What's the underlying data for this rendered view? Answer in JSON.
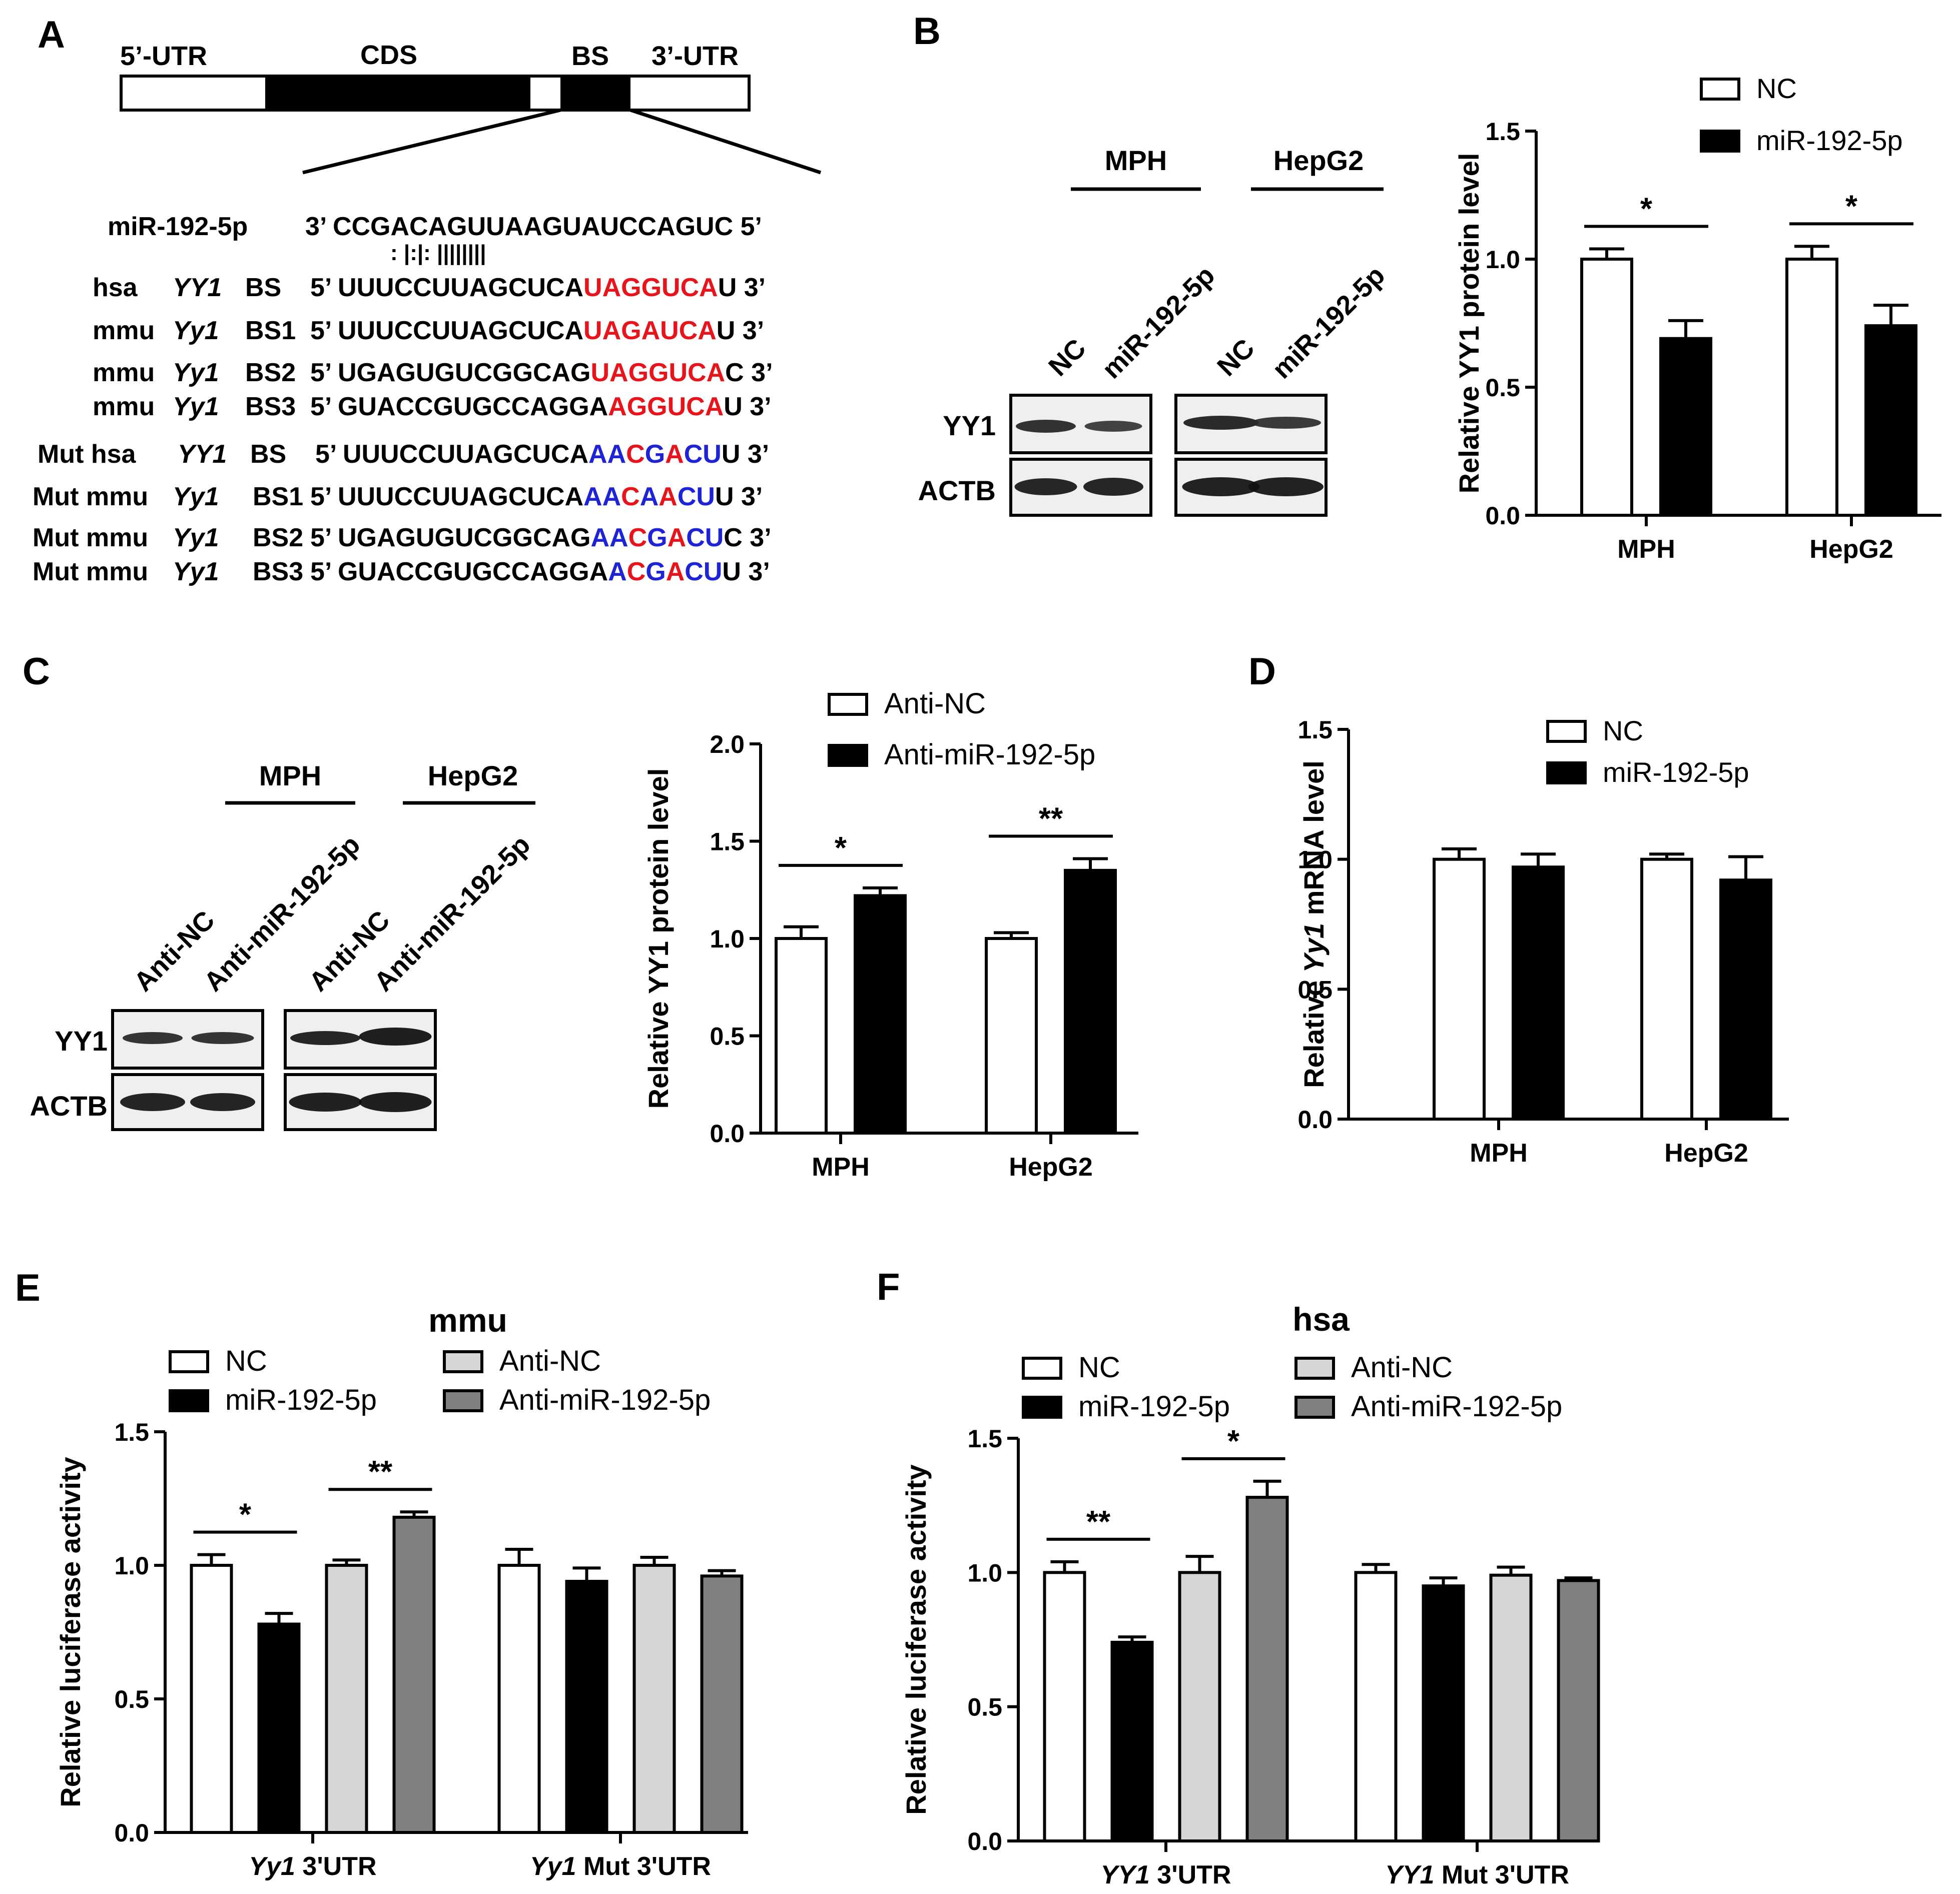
{
  "panels": {
    "A": {
      "label": "A",
      "gene_regions": [
        "5’-UTR",
        "CDS",
        "BS",
        "3’-UTR"
      ],
      "mirna_row": {
        "name": "miR-192-5p",
        "seq": "3’ CCGACAGUUAAGUAUCCAGUC 5’",
        "pairing": ":   |:|:   ||||||||"
      },
      "rows": [
        {
          "prefix": "hsa",
          "gene": "YY1",
          "site": "BS",
          "seq_pre": "5’ UUUCCUUAGCUCA",
          "seq_colored": [
            {
              "t": "UAGGUCA",
              "c": "#e8141c"
            }
          ],
          "seq_post": "U 3’"
        },
        {
          "prefix": "mmu",
          "gene": "Yy1",
          "site": "BS1",
          "seq_pre": "5’ UUUCCUUAGCUCA",
          "seq_colored": [
            {
              "t": "UAGAUCA",
              "c": "#e8141c"
            }
          ],
          "seq_post": "U 3’"
        },
        {
          "prefix": "mmu",
          "gene": "Yy1",
          "site": "BS2",
          "seq_pre": "5’ UGAGUGUCGGCAG",
          "seq_colored": [
            {
              "t": "UAGGUCA",
              "c": "#e8141c"
            }
          ],
          "seq_post": "C 3’"
        },
        {
          "prefix": "mmu",
          "gene": "Yy1",
          "site": "BS3",
          "seq_pre": "5’ GUACCGUGCCAGGA",
          "seq_colored": [
            {
              "t": "AGGUCA",
              "c": "#e8141c"
            }
          ],
          "seq_post": "U 3’"
        },
        {
          "prefix": "Mut hsa",
          "gene": "YY1",
          "site": "BS",
          "seq_pre": "5’ UUUCCUUAGCUCA",
          "seq_colored": [
            {
              "t": "AA",
              "c": "#1f23d6"
            },
            {
              "t": "C",
              "c": "#e8141c"
            },
            {
              "t": "G",
              "c": "#1f23d6"
            },
            {
              "t": "A",
              "c": "#e8141c"
            },
            {
              "t": "CU",
              "c": "#1f23d6"
            }
          ],
          "seq_post": "U 3’"
        },
        {
          "prefix": "Mut mmu",
          "gene": "Yy1",
          "site": "BS1",
          "seq_pre": "5’ UUUCCUUAGCUCA",
          "seq_colored": [
            {
              "t": "AA",
              "c": "#1f23d6"
            },
            {
              "t": "C",
              "c": "#e8141c"
            },
            {
              "t": "A",
              "c": "#1f23d6"
            },
            {
              "t": "A",
              "c": "#e8141c"
            },
            {
              "t": "CU",
              "c": "#1f23d6"
            }
          ],
          "seq_post": "U 3’"
        },
        {
          "prefix": "Mut mmu",
          "gene": "Yy1",
          "site": "BS2",
          "seq_pre": "5’ UGAGUGUCGGCAG",
          "seq_colored": [
            {
              "t": "AA",
              "c": "#1f23d6"
            },
            {
              "t": "C",
              "c": "#e8141c"
            },
            {
              "t": "G",
              "c": "#1f23d6"
            },
            {
              "t": "A",
              "c": "#e8141c"
            },
            {
              "t": "CU",
              "c": "#1f23d6"
            }
          ],
          "seq_post": "C 3’"
        },
        {
          "prefix": "Mut mmu",
          "gene": "Yy1",
          "site": "BS3",
          "seq_pre": "5’ GUACCGUGCCAGGA",
          "seq_colored": [
            {
              "t": "A",
              "c": "#1f23d6"
            },
            {
              "t": "C",
              "c": "#e8141c"
            },
            {
              "t": "G",
              "c": "#1f23d6"
            },
            {
              "t": "A",
              "c": "#e8141c"
            },
            {
              "t": "CU",
              "c": "#1f23d6"
            }
          ],
          "seq_post": "U 3’"
        }
      ]
    },
    "B": {
      "label": "B",
      "blot": {
        "groups": [
          "MPH",
          "HepG2"
        ],
        "lanes": [
          "NC",
          "miR-192-5p",
          "NC",
          "miR-192-5p"
        ],
        "rows": [
          "YY1",
          "ACTB"
        ]
      }
    },
    "C": {
      "label": "C",
      "blot": {
        "groups": [
          "MPH",
          "HepG2"
        ],
        "lanes": [
          "Anti-NC",
          "Anti-miR-192-5p",
          "Anti-NC",
          "Anti-miR-192-5p"
        ],
        "rows": [
          "YY1",
          "ACTB"
        ]
      }
    },
    "D": {
      "label": "D"
    },
    "E": {
      "label": "E"
    },
    "F": {
      "label": "F"
    }
  },
  "chart_data": [
    {
      "panel": "B",
      "type": "bar",
      "ylabel": "Relative YY1 protein level",
      "ylim": [
        0,
        1.5
      ],
      "yticks": [
        "0.0",
        "0.5",
        "1.0",
        "1.5"
      ],
      "categories": [
        "MPH",
        "HepG2"
      ],
      "series": [
        {
          "name": "NC",
          "fill": "#ffffff",
          "values": [
            1.0,
            1.0
          ],
          "errors": [
            0.04,
            0.05
          ]
        },
        {
          "name": "miR-192-5p",
          "fill": "#000000",
          "values": [
            0.69,
            0.74
          ],
          "errors": [
            0.07,
            0.08
          ]
        }
      ],
      "significance": [
        {
          "category": 0,
          "label": "*"
        },
        {
          "category": 1,
          "label": "*"
        }
      ],
      "legend": "top-right"
    },
    {
      "panel": "C",
      "type": "bar",
      "ylabel": "Relative YY1 protein level",
      "ylim": [
        0,
        2.0
      ],
      "yticks": [
        "0.0",
        "0.5",
        "1.0",
        "1.5",
        "2.0"
      ],
      "categories": [
        "MPH",
        "HepG2"
      ],
      "series": [
        {
          "name": "Anti-NC",
          "fill": "#ffffff",
          "values": [
            1.0,
            1.0
          ],
          "errors": [
            0.06,
            0.03
          ]
        },
        {
          "name": "Anti-miR-192-5p",
          "fill": "#000000",
          "values": [
            1.22,
            1.35
          ],
          "errors": [
            0.04,
            0.06
          ]
        }
      ],
      "significance": [
        {
          "category": 0,
          "label": "*"
        },
        {
          "category": 1,
          "label": "**"
        }
      ],
      "legend": "top"
    },
    {
      "panel": "D",
      "type": "bar",
      "ylabel_parts": [
        "Relative ",
        "Yy1",
        " mRNA level"
      ],
      "ylim": [
        0,
        1.5
      ],
      "yticks": [
        "0.0",
        "0.5",
        "1.0",
        "1.5"
      ],
      "categories": [
        "MPH",
        "HepG2"
      ],
      "series": [
        {
          "name": "NC",
          "fill": "#ffffff",
          "values": [
            1.0,
            1.0
          ],
          "errors": [
            0.04,
            0.02
          ]
        },
        {
          "name": "miR-192-5p",
          "fill": "#000000",
          "values": [
            0.97,
            0.92
          ],
          "errors": [
            0.05,
            0.09
          ]
        }
      ],
      "significance": [],
      "legend": "top-right"
    },
    {
      "panel": "E",
      "type": "bar",
      "title": "mmu",
      "ylabel": "Relative luciferase activity",
      "ylim": [
        0,
        1.5
      ],
      "yticks": [
        "0.0",
        "0.5",
        "1.0",
        "1.5"
      ],
      "categories": [
        [
          "Yy1",
          " 3'UTR"
        ],
        [
          "Yy1",
          " Mut 3'UTR"
        ]
      ],
      "series": [
        {
          "name": "NC",
          "fill": "#ffffff",
          "values": [
            1.0,
            1.0
          ],
          "errors": [
            0.04,
            0.06
          ]
        },
        {
          "name": "miR-192-5p",
          "fill": "#000000",
          "values": [
            0.78,
            0.94
          ],
          "errors": [
            0.04,
            0.05
          ]
        },
        {
          "name": "Anti-NC",
          "fill": "#d6d6d6",
          "values": [
            1.0,
            1.0
          ],
          "errors": [
            0.02,
            0.03
          ]
        },
        {
          "name": "Anti-miR-192-5p",
          "fill": "#808080",
          "values": [
            1.18,
            0.96
          ],
          "errors": [
            0.02,
            0.02
          ]
        }
      ],
      "significance": [
        {
          "category": 0,
          "pair": [
            0,
            1
          ],
          "label": "*"
        },
        {
          "category": 0,
          "pair": [
            2,
            3
          ],
          "label": "**"
        }
      ],
      "legend": "top"
    },
    {
      "panel": "F",
      "type": "bar",
      "title": "hsa",
      "ylabel": "Relative luciferase activity",
      "ylim": [
        0,
        1.5
      ],
      "yticks": [
        "0.0",
        "0.5",
        "1.0",
        "1.5"
      ],
      "categories": [
        [
          "YY1",
          " 3'UTR"
        ],
        [
          "YY1",
          " Mut 3'UTR"
        ]
      ],
      "series": [
        {
          "name": "NC",
          "fill": "#ffffff",
          "values": [
            1.0,
            1.0
          ],
          "errors": [
            0.04,
            0.03
          ]
        },
        {
          "name": "miR-192-5p",
          "fill": "#000000",
          "values": [
            0.74,
            0.95
          ],
          "errors": [
            0.02,
            0.03
          ]
        },
        {
          "name": "Anti-NC",
          "fill": "#d6d6d6",
          "values": [
            1.0,
            0.99
          ],
          "errors": [
            0.06,
            0.03
          ]
        },
        {
          "name": "Anti-miR-192-5p",
          "fill": "#808080",
          "values": [
            1.28,
            0.97
          ],
          "errors": [
            0.06,
            0.01
          ]
        }
      ],
      "significance": [
        {
          "category": 0,
          "pair": [
            0,
            1
          ],
          "label": "**"
        },
        {
          "category": 0,
          "pair": [
            2,
            3
          ],
          "label": "*"
        }
      ],
      "legend": "top"
    }
  ]
}
